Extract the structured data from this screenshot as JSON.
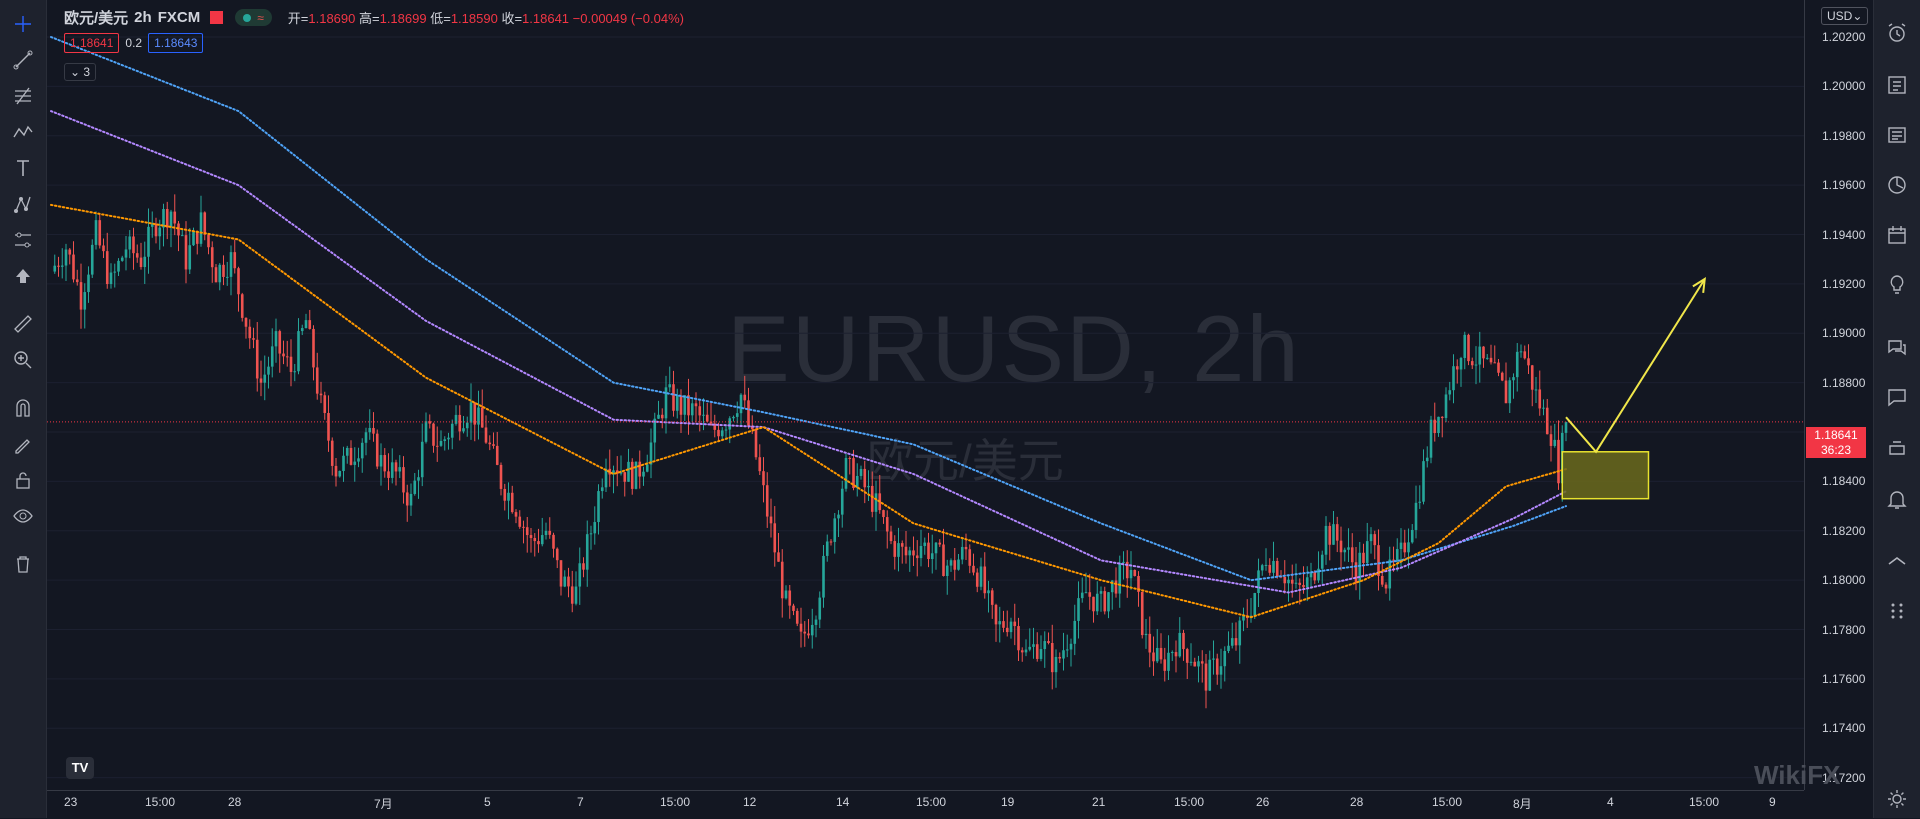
{
  "header": {
    "symbol": "欧元/美元",
    "interval": "2h",
    "exchange": "FXCM",
    "pill_glyph": "≈",
    "ohlc": {
      "open_label": "开=",
      "open": "1.18690",
      "high_label": "高=",
      "high": "1.18699",
      "low_label": "低=",
      "low": "1.18590",
      "close_label": "收=",
      "close": "1.18641",
      "change": "−0.00049 (−0.04%)"
    },
    "bid": "1.18641",
    "spread": "0.2",
    "ask": "1.18643",
    "indicators_count": "3"
  },
  "watermark": {
    "main": "EURUSD, 2h",
    "sub": "欧元/美元"
  },
  "price_axis": {
    "currency": "USD",
    "ticks": [
      "1.20200",
      "1.20000",
      "1.19800",
      "1.19600",
      "1.19400",
      "1.19200",
      "1.19000",
      "1.18800",
      "1.18400",
      "1.18200",
      "1.18000",
      "1.17800",
      "1.17600",
      "1.17400",
      "1.17200"
    ],
    "current_price": "1.18641",
    "countdown": "36:23"
  },
  "time_axis": {
    "ticks": [
      "23",
      "15:00",
      "28",
      "7月",
      "5",
      "7",
      "15:00",
      "12",
      "14",
      "15:00",
      "19",
      "21",
      "15:00",
      "26",
      "28",
      "15:00",
      "8月",
      "4",
      "15:00",
      "9"
    ]
  },
  "colors": {
    "up": "#26a69a",
    "down": "#ef5350",
    "ema_fast": "#ff9800",
    "ema_mid": "#b388ff",
    "ema_slow": "#4fa3f7",
    "zone": "#6b6a1c",
    "zone_border": "#e8e32e",
    "arrow": "#f0e64a"
  },
  "chart_data": {
    "type": "candlestick",
    "symbol": "EURUSD",
    "interval": "2h",
    "ylim": [
      1.1715,
      1.2035
    ],
    "current_price": 1.18641,
    "close_path": [
      [
        0,
        1.1925
      ],
      [
        4,
        1.1935
      ],
      [
        8,
        1.1915
      ],
      [
        12,
        1.194
      ],
      [
        16,
        1.192
      ],
      [
        20,
        1.1935
      ],
      [
        24,
        1.193
      ],
      [
        28,
        1.1945
      ],
      [
        32,
        1.195
      ],
      [
        36,
        1.193
      ],
      [
        40,
        1.1945
      ],
      [
        44,
        1.1925
      ],
      [
        48,
        1.193
      ],
      [
        52,
        1.1905
      ],
      [
        56,
        1.188
      ],
      [
        60,
        1.1895
      ],
      [
        64,
        1.1885
      ],
      [
        68,
        1.1905
      ],
      [
        72,
        1.187
      ],
      [
        76,
        1.1845
      ],
      [
        80,
        1.185
      ],
      [
        84,
        1.186
      ],
      [
        88,
        1.1848
      ],
      [
        92,
        1.1843
      ],
      [
        96,
        1.1832
      ],
      [
        100,
        1.186
      ],
      [
        104,
        1.1855
      ],
      [
        108,
        1.1865
      ],
      [
        112,
        1.187
      ],
      [
        116,
        1.1858
      ],
      [
        120,
        1.184
      ],
      [
        124,
        1.183
      ],
      [
        128,
        1.1815
      ],
      [
        132,
        1.182
      ],
      [
        136,
        1.18
      ],
      [
        140,
        1.1795
      ],
      [
        144,
        1.182
      ],
      [
        148,
        1.185
      ],
      [
        152,
        1.1845
      ],
      [
        156,
        1.1842
      ],
      [
        160,
        1.1855
      ],
      [
        164,
        1.1875
      ],
      [
        168,
        1.187
      ],
      [
        172,
        1.1868
      ],
      [
        176,
        1.186
      ],
      [
        180,
        1.1865
      ],
      [
        184,
        1.1875
      ],
      [
        188,
        1.185
      ],
      [
        192,
        1.182
      ],
      [
        196,
        1.179
      ],
      [
        200,
        1.1775
      ],
      [
        204,
        1.179
      ],
      [
        208,
        1.182
      ],
      [
        212,
        1.1845
      ],
      [
        216,
        1.184
      ],
      [
        220,
        1.183
      ],
      [
        224,
        1.1815
      ],
      [
        228,
        1.181
      ],
      [
        232,
        1.1815
      ],
      [
        236,
        1.181
      ],
      [
        240,
        1.1805
      ],
      [
        244,
        1.1812
      ],
      [
        248,
        1.18
      ],
      [
        252,
        1.178
      ],
      [
        256,
        1.1785
      ],
      [
        260,
        1.177
      ],
      [
        264,
        1.1775
      ],
      [
        268,
        1.1765
      ],
      [
        272,
        1.178
      ],
      [
        276,
        1.1795
      ],
      [
        280,
        1.179
      ],
      [
        284,
        1.18
      ],
      [
        288,
        1.1805
      ],
      [
        292,
        1.1775
      ],
      [
        296,
        1.1765
      ],
      [
        300,
        1.1775
      ],
      [
        304,
        1.177
      ],
      [
        308,
        1.176
      ],
      [
        312,
        1.1768
      ],
      [
        316,
        1.1775
      ],
      [
        320,
        1.179
      ],
      [
        324,
        1.181
      ],
      [
        328,
        1.1805
      ],
      [
        332,
        1.1795
      ],
      [
        336,
        1.18
      ],
      [
        340,
        1.182
      ],
      [
        344,
        1.1815
      ],
      [
        348,
        1.1805
      ],
      [
        352,
        1.1815
      ],
      [
        356,
        1.18
      ],
      [
        360,
        1.181
      ],
      [
        364,
        1.183
      ],
      [
        368,
        1.186
      ],
      [
        372,
        1.1875
      ],
      [
        376,
        1.1895
      ],
      [
        380,
        1.189
      ],
      [
        384,
        1.1885
      ],
      [
        388,
        1.1875
      ],
      [
        392,
        1.1895
      ],
      [
        396,
        1.1875
      ],
      [
        400,
        1.186
      ],
      [
        402,
        1.1845
      ],
      [
        404,
        1.1864
      ]
    ],
    "ema_fast": [
      [
        0,
        1.1952
      ],
      [
        50,
        1.1938
      ],
      [
        100,
        1.1882
      ],
      [
        150,
        1.1843
      ],
      [
        190,
        1.1862
      ],
      [
        230,
        1.1823
      ],
      [
        280,
        1.18
      ],
      [
        320,
        1.1785
      ],
      [
        350,
        1.18
      ],
      [
        370,
        1.1815
      ],
      [
        388,
        1.1838
      ],
      [
        404,
        1.1845
      ]
    ],
    "ema_mid": [
      [
        0,
        1.199
      ],
      [
        50,
        1.196
      ],
      [
        100,
        1.1905
      ],
      [
        150,
        1.1865
      ],
      [
        190,
        1.1862
      ],
      [
        230,
        1.1843
      ],
      [
        280,
        1.1808
      ],
      [
        330,
        1.1795
      ],
      [
        360,
        1.1805
      ],
      [
        390,
        1.1825
      ],
      [
        404,
        1.1836
      ]
    ],
    "ema_slow": [
      [
        0,
        1.202
      ],
      [
        50,
        1.199
      ],
      [
        100,
        1.193
      ],
      [
        150,
        1.188
      ],
      [
        190,
        1.1868
      ],
      [
        230,
        1.1855
      ],
      [
        280,
        1.1823
      ],
      [
        320,
        1.18
      ],
      [
        360,
        1.1808
      ],
      [
        390,
        1.1822
      ],
      [
        404,
        1.183
      ]
    ],
    "drawings": {
      "zone": {
        "x": [
          403,
          426
        ],
        "y": [
          1.1833,
          1.1852
        ]
      },
      "arrow": [
        [
          404,
          1.1866
        ],
        [
          412,
          1.1852
        ],
        [
          441,
          1.1922
        ]
      ]
    }
  }
}
